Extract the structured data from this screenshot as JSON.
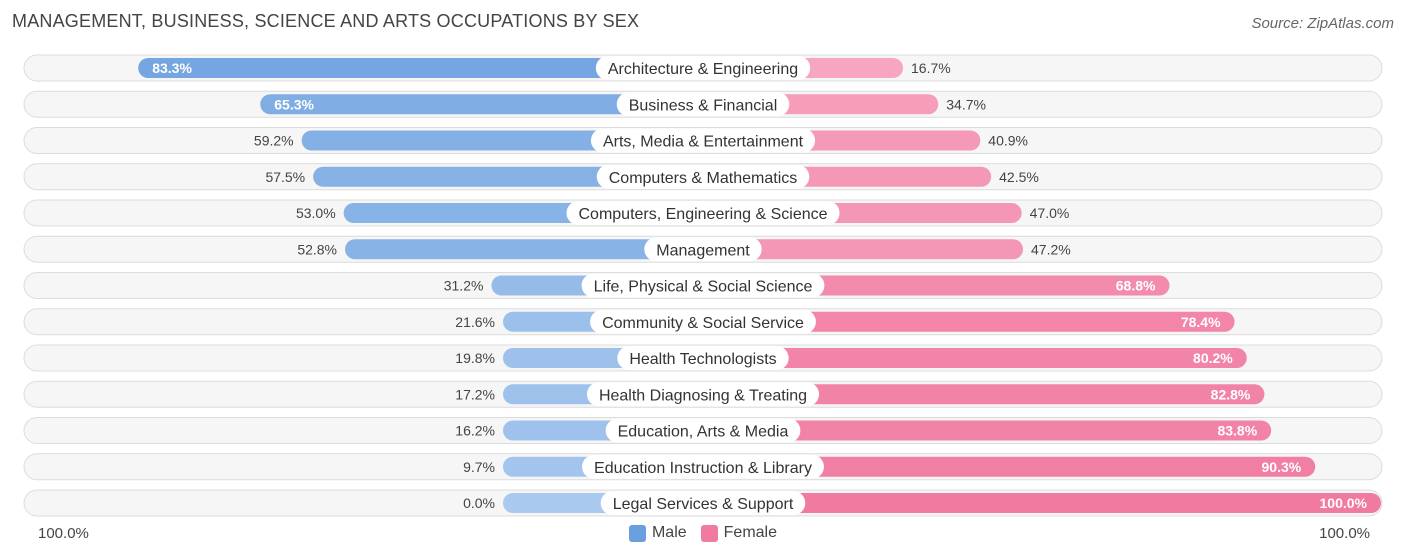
{
  "header": {
    "title": "MANAGEMENT, BUSINESS, SCIENCE AND ARTS OCCUPATIONS BY SEX",
    "source": "Source: ZipAtlas.com"
  },
  "axis": {
    "left_label": "100.0%",
    "right_label": "100.0%"
  },
  "legend": {
    "male_label": "Male",
    "female_label": "Female"
  },
  "colors": {
    "male_dark": "#6a9fdf",
    "male_light": "#a9c9ee",
    "female_dark": "#f07aa0",
    "female_light": "#f7afc7",
    "row_bg": "#eeeeee"
  },
  "chart_data": {
    "type": "bar",
    "orientation": "horizontal-diverging",
    "title": "MANAGEMENT, BUSINESS, SCIENCE AND ARTS OCCUPATIONS BY SEX",
    "categories": [
      "Architecture & Engineering",
      "Business & Financial",
      "Arts, Media & Entertainment",
      "Computers & Mathematics",
      "Computers, Engineering & Science",
      "Management",
      "Life, Physical & Social Science",
      "Community & Social Service",
      "Health Technologists",
      "Health Diagnosing & Treating",
      "Education, Arts & Media",
      "Education Instruction & Library",
      "Legal Services & Support"
    ],
    "series": [
      {
        "name": "Male",
        "values": [
          83.3,
          65.3,
          59.2,
          57.5,
          53.0,
          52.8,
          31.2,
          21.6,
          19.8,
          17.2,
          16.2,
          9.7,
          0.0
        ]
      },
      {
        "name": "Female",
        "values": [
          16.7,
          34.7,
          40.9,
          42.5,
          47.0,
          47.2,
          68.8,
          78.4,
          80.2,
          82.8,
          83.8,
          90.3,
          100.0
        ]
      }
    ],
    "value_labels": {
      "male": [
        "83.3%",
        "65.3%",
        "59.2%",
        "57.5%",
        "53.0%",
        "52.8%",
        "31.2%",
        "21.6%",
        "19.8%",
        "17.2%",
        "16.2%",
        "9.7%",
        "0.0%"
      ],
      "female": [
        "16.7%",
        "34.7%",
        "40.9%",
        "42.5%",
        "47.0%",
        "47.2%",
        "68.8%",
        "78.4%",
        "80.2%",
        "82.8%",
        "83.8%",
        "90.3%",
        "100.0%"
      ]
    },
    "xlim": [
      0,
      100
    ],
    "legend_position": "bottom-center",
    "grid": false
  }
}
